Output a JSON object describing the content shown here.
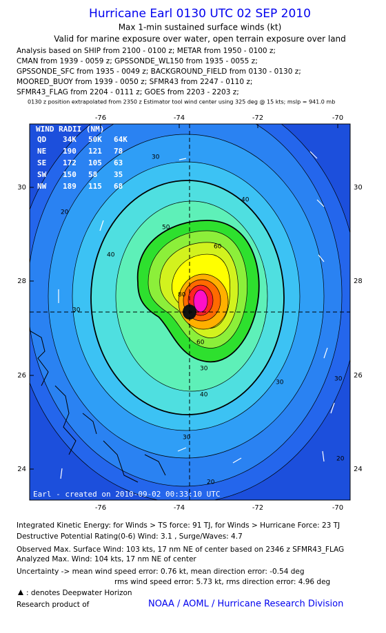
{
  "header": {
    "title": "Hurricane Earl 0130 UTC 02 SEP 2010",
    "subtitle": "Max 1-min sustained surface winds (kt)",
    "validity": "Valid for marine exposure over water, open terrain exposure over land",
    "sources": [
      "Analysis based on SHIP from 2100 - 0100 z; METAR from 1950 - 0100 z;",
      "CMAN from 1939 - 0059 z; GPSSONDE_WL150 from 1935 - 0055 z;",
      "GPSSONDE_SFC from 1935 - 0049 z; BACKGROUND_FIELD from 0130 - 0130 z;",
      "MOORED_BUOY from 1939 - 0050 z; SFMR43 from 2247 - 0110 z;",
      "SFMR43_FLAG from 2204 - 0111 z; GOES from 2203 - 2203 z;"
    ],
    "position_note": "0130 z position extrapolated from 2350 z Estimator tool wind center using 325 deg @ 15 kts; mslp = 941.0 mb"
  },
  "map": {
    "x_labels": [
      "-76",
      "-74",
      "-72",
      "-70"
    ],
    "y_labels": [
      "30",
      "28",
      "26",
      "24"
    ],
    "radii_table": {
      "title": "WIND RADII (NM)",
      "rows": [
        [
          "QD",
          "34K",
          "50K",
          "64K"
        ],
        [
          "NE",
          "190",
          "121",
          "78"
        ],
        [
          "SE",
          "172",
          "105",
          "63"
        ],
        [
          "SW",
          "150",
          "58",
          "35"
        ],
        [
          "NW",
          "189",
          "115",
          "68"
        ]
      ]
    },
    "contour_labels": [
      "30",
      "40",
      "50",
      "60",
      "80",
      "30",
      "40",
      "60",
      "20",
      "30",
      "40",
      "30",
      "20",
      "30",
      "20",
      "30"
    ],
    "credit": "Earl - created on 2010-09-02 00:33:10 UTC"
  },
  "footer": {
    "lines": [
      "Integrated Kinetic Energy:  for Winds > TS force: 91 TJ,  for Winds > Hurricane Force: 23 TJ",
      "Destructive Potential Rating(0-6)   Wind: 3.1 , Surge/Waves: 4.7",
      "Observed Max. Surface Wind: 103 kts, 17 nm NE of center based on 2346 z SFMR43_FLAG",
      "Analyzed Max. Wind: 104 kts, 17 nm NE of center",
      "Uncertainty -> mean wind speed error: 0.76 kt,   mean direction error:  -0.54 deg",
      "rms wind speed error: 5.73 kt,    rms direction error: 4.96 deg"
    ],
    "legend": ": denotes Deepwater Horizon",
    "research": "Research product of",
    "org": "NOAA / AOML / Hurricane Research Division"
  }
}
